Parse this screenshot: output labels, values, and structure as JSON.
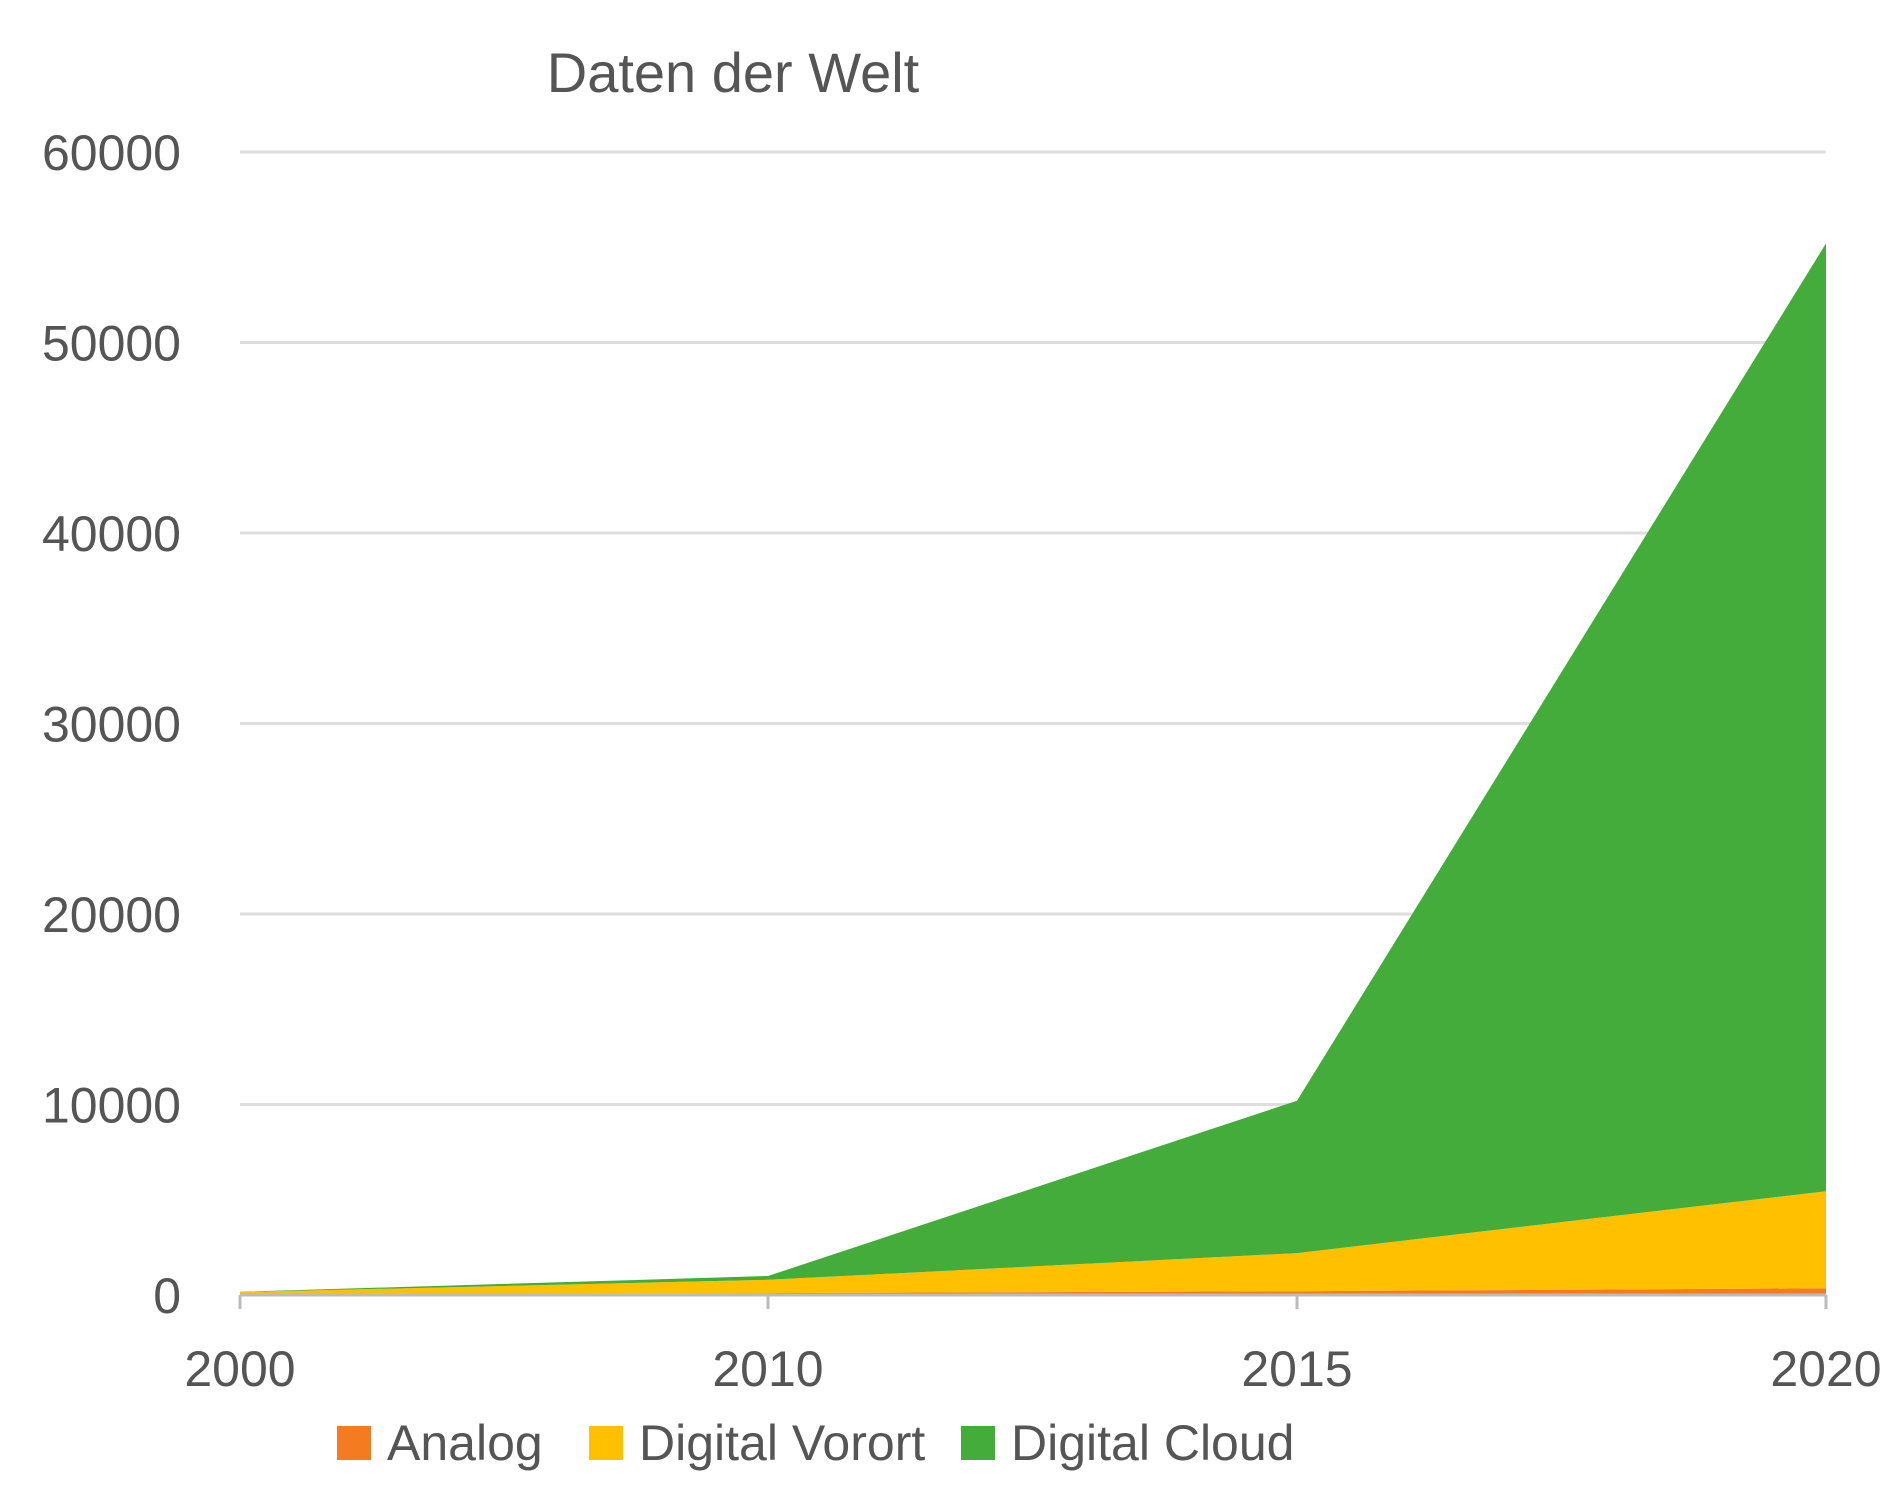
{
  "chart_data": {
    "type": "area",
    "stacked": true,
    "title": "Daten der Welt",
    "xlabel": "",
    "ylabel": "",
    "x": [
      "2000",
      "2010",
      "2015",
      "2020"
    ],
    "ylim": [
      0,
      60000
    ],
    "y_ticks": [
      "0",
      "10000",
      "20000",
      "30000",
      "40000",
      "50000",
      "60000"
    ],
    "x_ticks": [
      "2000",
      "2010",
      "2015",
      "2020"
    ],
    "grid": true,
    "legend": "bottom",
    "series": [
      {
        "name": "Analog",
        "color": "#F47B20",
        "values": [
          50,
          100,
          200,
          350
        ]
      },
      {
        "name": "Digital Vorort",
        "color": "#FFC000",
        "values": [
          100,
          700,
          2000,
          5100
        ]
      },
      {
        "name": "Digital Cloud",
        "color": "#43AC3A",
        "values": [
          20,
          200,
          8000,
          49750
        ]
      }
    ]
  },
  "colors": {
    "grid": "#dedede",
    "axis": "#bbbbbb",
    "text": "#555555"
  }
}
